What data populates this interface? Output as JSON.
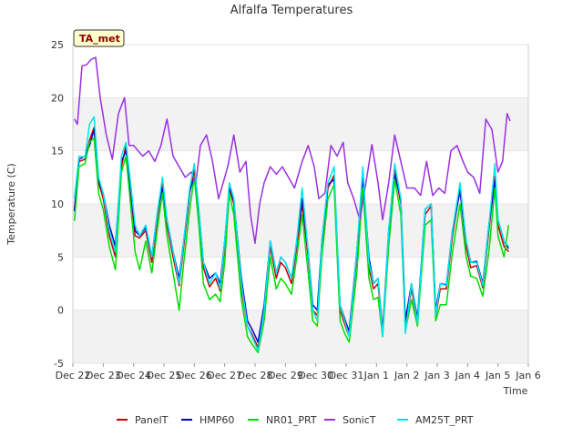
{
  "chart_data": {
    "type": "line",
    "title": "Alfalfa Temperatures",
    "xlabel": "Time",
    "ylabel": "Temperature (C)",
    "annotation": "TA_met",
    "x_ticks": [
      "Dec 22",
      "Dec 23",
      "Dec 24",
      "Dec 25",
      "Dec 26",
      "Dec 27",
      "Dec 28",
      "Dec 29",
      "Dec 30",
      "Dec 31",
      "Jan 1",
      "Jan 2",
      "Jan 3",
      "Jan 4",
      "Jan 5",
      "Jan 6"
    ],
    "xlim": [
      0,
      15
    ],
    "ylim": [
      -5,
      25
    ],
    "y_ticks": [
      -5,
      0,
      5,
      10,
      15,
      20,
      25
    ],
    "bands": "alternating light-gray horizontal bands",
    "legend": {
      "placement": "bottom"
    },
    "series": [
      {
        "name": "PanelT",
        "color": "#cc0000",
        "x": [
          0.05,
          0.2,
          0.4,
          0.55,
          0.7,
          0.85,
          1.0,
          1.2,
          1.4,
          1.6,
          1.75,
          1.9,
          2.05,
          2.2,
          2.4,
          2.6,
          2.8,
          2.95,
          3.1,
          3.3,
          3.5,
          3.65,
          3.85,
          4.0,
          4.15,
          4.3,
          4.5,
          4.7,
          4.85,
          5.0,
          5.15,
          5.3,
          5.55,
          5.75,
          5.9,
          6.1,
          6.3,
          6.5,
          6.7,
          6.85,
          7.0,
          7.2,
          7.35,
          7.55,
          7.75,
          7.9,
          8.05,
          8.2,
          8.4,
          8.6,
          8.8,
          8.95,
          9.1,
          9.35,
          9.55,
          9.75,
          9.9,
          10.05,
          10.2,
          10.4,
          10.6,
          10.8,
          10.95,
          11.15,
          11.35,
          11.6,
          11.8,
          11.95,
          12.1,
          12.3,
          12.5,
          12.75,
          12.95,
          13.1,
          13.3,
          13.5,
          13.7,
          13.9,
          14.0,
          14.2,
          14.35
        ],
        "values": [
          9.5,
          14,
          14.2,
          16,
          17.2,
          12,
          10.5,
          7,
          5,
          13.5,
          15.5,
          11,
          7,
          6.8,
          7.5,
          4.5,
          9,
          12,
          8,
          5,
          2.3,
          6,
          11,
          13.2,
          9,
          4,
          2.2,
          3,
          1.8,
          6,
          11.5,
          10,
          2,
          -1.5,
          -2.3,
          -3.5,
          0,
          6,
          3,
          4.5,
          4,
          2.5,
          5.5,
          10,
          5,
          0,
          -0.5,
          6,
          11.5,
          12.7,
          0,
          -1.3,
          -2.5,
          5,
          13,
          4,
          2,
          2.5,
          -2.3,
          7,
          13.2,
          10,
          -1.6,
          2,
          -1.3,
          9,
          9.8,
          -0.6,
          2,
          2,
          7,
          11.5,
          6,
          4,
          4.2,
          2.1,
          7.5,
          12.6,
          8,
          6,
          5.5
        ]
      },
      {
        "name": "HMP60",
        "color": "#0000cc",
        "x": [
          0.05,
          0.2,
          0.4,
          0.55,
          0.7,
          0.85,
          1.0,
          1.2,
          1.4,
          1.6,
          1.75,
          1.9,
          2.05,
          2.2,
          2.4,
          2.6,
          2.8,
          2.95,
          3.1,
          3.3,
          3.5,
          3.65,
          3.85,
          4.0,
          4.15,
          4.3,
          4.5,
          4.7,
          4.85,
          5.0,
          5.15,
          5.3,
          5.55,
          5.75,
          5.9,
          6.1,
          6.3,
          6.5,
          6.7,
          6.85,
          7.0,
          7.2,
          7.35,
          7.55,
          7.75,
          7.9,
          8.05,
          8.2,
          8.4,
          8.6,
          8.8,
          8.95,
          9.1,
          9.35,
          9.55,
          9.75,
          9.9,
          10.05,
          10.2,
          10.4,
          10.6,
          10.8,
          10.95,
          11.15,
          11.35,
          11.6,
          11.8,
          11.95,
          12.1,
          12.3,
          12.5,
          12.75,
          12.95,
          13.1,
          13.3,
          13.5,
          13.7,
          13.9,
          14.0,
          14.2,
          14.35
        ],
        "values": [
          9.3,
          14.2,
          14.5,
          15.5,
          17.0,
          12.2,
          11,
          8,
          6,
          14,
          15,
          11.5,
          7.5,
          7,
          7.8,
          5,
          9.5,
          11.5,
          8.5,
          5.5,
          3.0,
          6.5,
          11.2,
          12.5,
          9.3,
          4.5,
          3.0,
          3.5,
          2.5,
          6.5,
          11.5,
          10.3,
          3,
          -1,
          -1.8,
          -3,
          0.5,
          6.5,
          3.5,
          5,
          4.5,
          3,
          6,
          10.5,
          5.5,
          0.5,
          0,
          6.5,
          11.8,
          12.3,
          0.5,
          -0.8,
          -2,
          5.5,
          12.5,
          5,
          2.5,
          3,
          -2.0,
          7.5,
          12.7,
          10.5,
          -1.0,
          2.5,
          -0.8,
          9.5,
          10,
          0.0,
          2.5,
          2.4,
          7.5,
          11.2,
          6.5,
          4.5,
          4.6,
          2.5,
          8,
          12.2,
          8.5,
          6.5,
          5.8
        ]
      },
      {
        "name": "NR01_PRT",
        "color": "#00dd00",
        "x": [
          0.05,
          0.2,
          0.4,
          0.55,
          0.7,
          0.85,
          1.0,
          1.2,
          1.4,
          1.6,
          1.75,
          1.9,
          2.05,
          2.2,
          2.4,
          2.6,
          2.8,
          2.95,
          3.1,
          3.3,
          3.5,
          3.65,
          3.85,
          4.0,
          4.15,
          4.3,
          4.5,
          4.7,
          4.85,
          5.0,
          5.15,
          5.3,
          5.55,
          5.75,
          5.9,
          6.1,
          6.3,
          6.5,
          6.7,
          6.85,
          7.0,
          7.2,
          7.35,
          7.55,
          7.75,
          7.9,
          8.05,
          8.2,
          8.4,
          8.6,
          8.8,
          8.95,
          9.1,
          9.35,
          9.55,
          9.75,
          9.9,
          10.05,
          10.2,
          10.4,
          10.6,
          10.8,
          10.95,
          11.15,
          11.35,
          11.6,
          11.8,
          11.95,
          12.1,
          12.3,
          12.5,
          12.75,
          12.95,
          13.1,
          13.3,
          13.5,
          13.7,
          13.9,
          14.0,
          14.2,
          14.35
        ],
        "values": [
          8.4,
          13.5,
          13.8,
          15.8,
          16.2,
          11,
          9.5,
          6,
          3.8,
          13,
          14.5,
          10,
          5.5,
          3.8,
          6.5,
          3.5,
          8,
          11,
          7,
          3.5,
          0.0,
          4.5,
          9.5,
          12.5,
          8,
          2.5,
          1.0,
          1.5,
          0.8,
          4.5,
          11,
          9,
          1,
          -2.5,
          -3.2,
          -4.0,
          -1,
          5,
          2,
          3,
          2.5,
          1.5,
          4.5,
          9,
          3.5,
          -1,
          -1.5,
          5,
          10.5,
          11.8,
          -1,
          -2.2,
          -3.0,
          3.5,
          11.5,
          3,
          1,
          1.2,
          -2.5,
          6,
          12.3,
          9,
          -2.0,
          1,
          -1.5,
          8,
          8.5,
          -1.0,
          0.5,
          0.5,
          5.5,
          10,
          5,
          3.2,
          3.0,
          1.3,
          5.5,
          11.5,
          7,
          5,
          8.0
        ]
      },
      {
        "name": "SonicT",
        "color": "#9a30e0",
        "x": [
          0.05,
          0.15,
          0.3,
          0.45,
          0.6,
          0.75,
          0.9,
          1.1,
          1.3,
          1.5,
          1.7,
          1.85,
          2.0,
          2.15,
          2.3,
          2.5,
          2.7,
          2.9,
          3.1,
          3.3,
          3.5,
          3.7,
          3.9,
          4.05,
          4.2,
          4.4,
          4.6,
          4.8,
          4.95,
          5.1,
          5.3,
          5.5,
          5.7,
          5.85,
          6.0,
          6.15,
          6.3,
          6.5,
          6.7,
          6.9,
          7.1,
          7.3,
          7.55,
          7.75,
          7.95,
          8.1,
          8.3,
          8.5,
          8.7,
          8.9,
          9.05,
          9.25,
          9.45,
          9.65,
          9.85,
          10.05,
          10.2,
          10.4,
          10.6,
          10.8,
          11.0,
          11.25,
          11.45,
          11.65,
          11.85,
          12.05,
          12.25,
          12.45,
          12.65,
          12.85,
          13.0,
          13.2,
          13.4,
          13.6,
          13.8,
          14.0,
          14.15,
          14.3,
          14.4
        ],
        "values": [
          18,
          17.5,
          23,
          23.1,
          23.6,
          23.8,
          20,
          16.5,
          14.2,
          18.5,
          20,
          15.5,
          15.5,
          15,
          14.5,
          15,
          14,
          15.5,
          18,
          14.5,
          13.5,
          12.5,
          13,
          12,
          15.5,
          16.5,
          14,
          10.5,
          12,
          13.5,
          16.5,
          13,
          14,
          9,
          6.3,
          10,
          12,
          13.5,
          12.8,
          13.5,
          12.5,
          11.5,
          14,
          15.5,
          13.5,
          10.5,
          11,
          15.5,
          14.5,
          15.8,
          12,
          10.5,
          8.5,
          12,
          15.6,
          12,
          8.5,
          12,
          16.5,
          14,
          11.5,
          11.5,
          10.8,
          14,
          10.8,
          11.5,
          11,
          15,
          15.5,
          14,
          13,
          12.5,
          11,
          18,
          17,
          13,
          14,
          18.5,
          17.8
        ]
      },
      {
        "name": "AM25T_PRT",
        "color": "#00e5ee",
        "x": [
          0.05,
          0.2,
          0.4,
          0.55,
          0.7,
          0.85,
          1.0,
          1.2,
          1.4,
          1.6,
          1.75,
          1.9,
          2.05,
          2.2,
          2.4,
          2.6,
          2.8,
          2.95,
          3.1,
          3.3,
          3.5,
          3.65,
          3.85,
          4.0,
          4.15,
          4.3,
          4.5,
          4.7,
          4.85,
          5.0,
          5.15,
          5.3,
          5.55,
          5.75,
          5.9,
          6.1,
          6.3,
          6.5,
          6.7,
          6.85,
          7.0,
          7.2,
          7.35,
          7.55,
          7.75,
          7.9,
          8.05,
          8.2,
          8.4,
          8.6,
          8.8,
          8.95,
          9.1,
          9.35,
          9.55,
          9.75,
          9.9,
          10.05,
          10.2,
          10.4,
          10.6,
          10.8,
          10.95,
          11.15,
          11.35,
          11.6,
          11.8,
          11.95,
          12.1,
          12.3,
          12.5,
          12.75,
          12.95,
          13.1,
          13.3,
          13.5,
          13.7,
          13.9,
          14.0,
          14.2,
          14.35
        ],
        "values": [
          10.5,
          14.5,
          14.4,
          17.5,
          18.2,
          12.5,
          11,
          7.5,
          5.5,
          14.5,
          15.8,
          12,
          8,
          7,
          8,
          5,
          9.5,
          12.5,
          8.5,
          5.5,
          2.5,
          6.5,
          11.5,
          13.8,
          9.5,
          4.5,
          2.5,
          3.5,
          2,
          6.5,
          12,
          10.5,
          2.5,
          -1.5,
          -2.5,
          -3.8,
          0,
          6.5,
          3.5,
          5,
          4.5,
          3,
          6,
          11.5,
          5.5,
          0,
          -1,
          6.5,
          12,
          13.5,
          0.5,
          -1,
          -2.5,
          5.5,
          13.5,
          4.5,
          2.5,
          3,
          -2.5,
          7.5,
          13.8,
          10.5,
          -2.2,
          2.5,
          -1.2,
          9.5,
          10,
          -0.5,
          2.5,
          2.3,
          7.5,
          12,
          6.5,
          4.5,
          4.5,
          2.3,
          8,
          13.8,
          8.5,
          6.5,
          6.0
        ]
      }
    ]
  }
}
